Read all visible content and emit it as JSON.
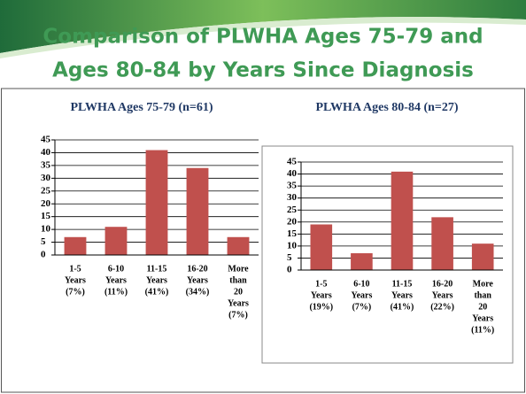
{
  "title_lines": [
    "Comparison of PLWHA Ages 75-79 and",
    "Ages 80-84 by Years Since Diagnosis"
  ],
  "chart_data": [
    {
      "type": "bar",
      "title": "PLWHA Ages 75-79 (n=61)",
      "categories": [
        [
          "1-5",
          "Years",
          "(7%)"
        ],
        [
          "6-10",
          "Years",
          "(11%)"
        ],
        [
          "11-15",
          "Years",
          "(41%)"
        ],
        [
          "16-20",
          "Years",
          "(34%)"
        ],
        [
          "More",
          "than",
          "20",
          "Years",
          "(7%)"
        ]
      ],
      "values": [
        7,
        11,
        41,
        34,
        7
      ],
      "color": "#c0504d",
      "ylim": [
        0,
        45
      ],
      "yticks": [
        0,
        5,
        10,
        15,
        20,
        25,
        30,
        35,
        40,
        45
      ],
      "grid": true
    },
    {
      "type": "bar",
      "title": "PLWHA Ages 80-84 (n=27)",
      "categories": [
        [
          "1-5",
          "Years",
          "(19%)"
        ],
        [
          "6-10",
          "Years",
          "(7%)"
        ],
        [
          "11-15",
          "Years",
          "(41%)"
        ],
        [
          "16-20",
          "Years",
          "(22%)"
        ],
        [
          "More",
          "than",
          "20",
          "Years",
          "(11%)"
        ]
      ],
      "values": [
        19,
        7,
        41,
        22,
        11
      ],
      "color": "#c0504d",
      "ylim": [
        0,
        45
      ],
      "yticks": [
        0,
        5,
        10,
        15,
        20,
        25,
        30,
        35,
        40,
        45
      ],
      "grid": true
    }
  ]
}
